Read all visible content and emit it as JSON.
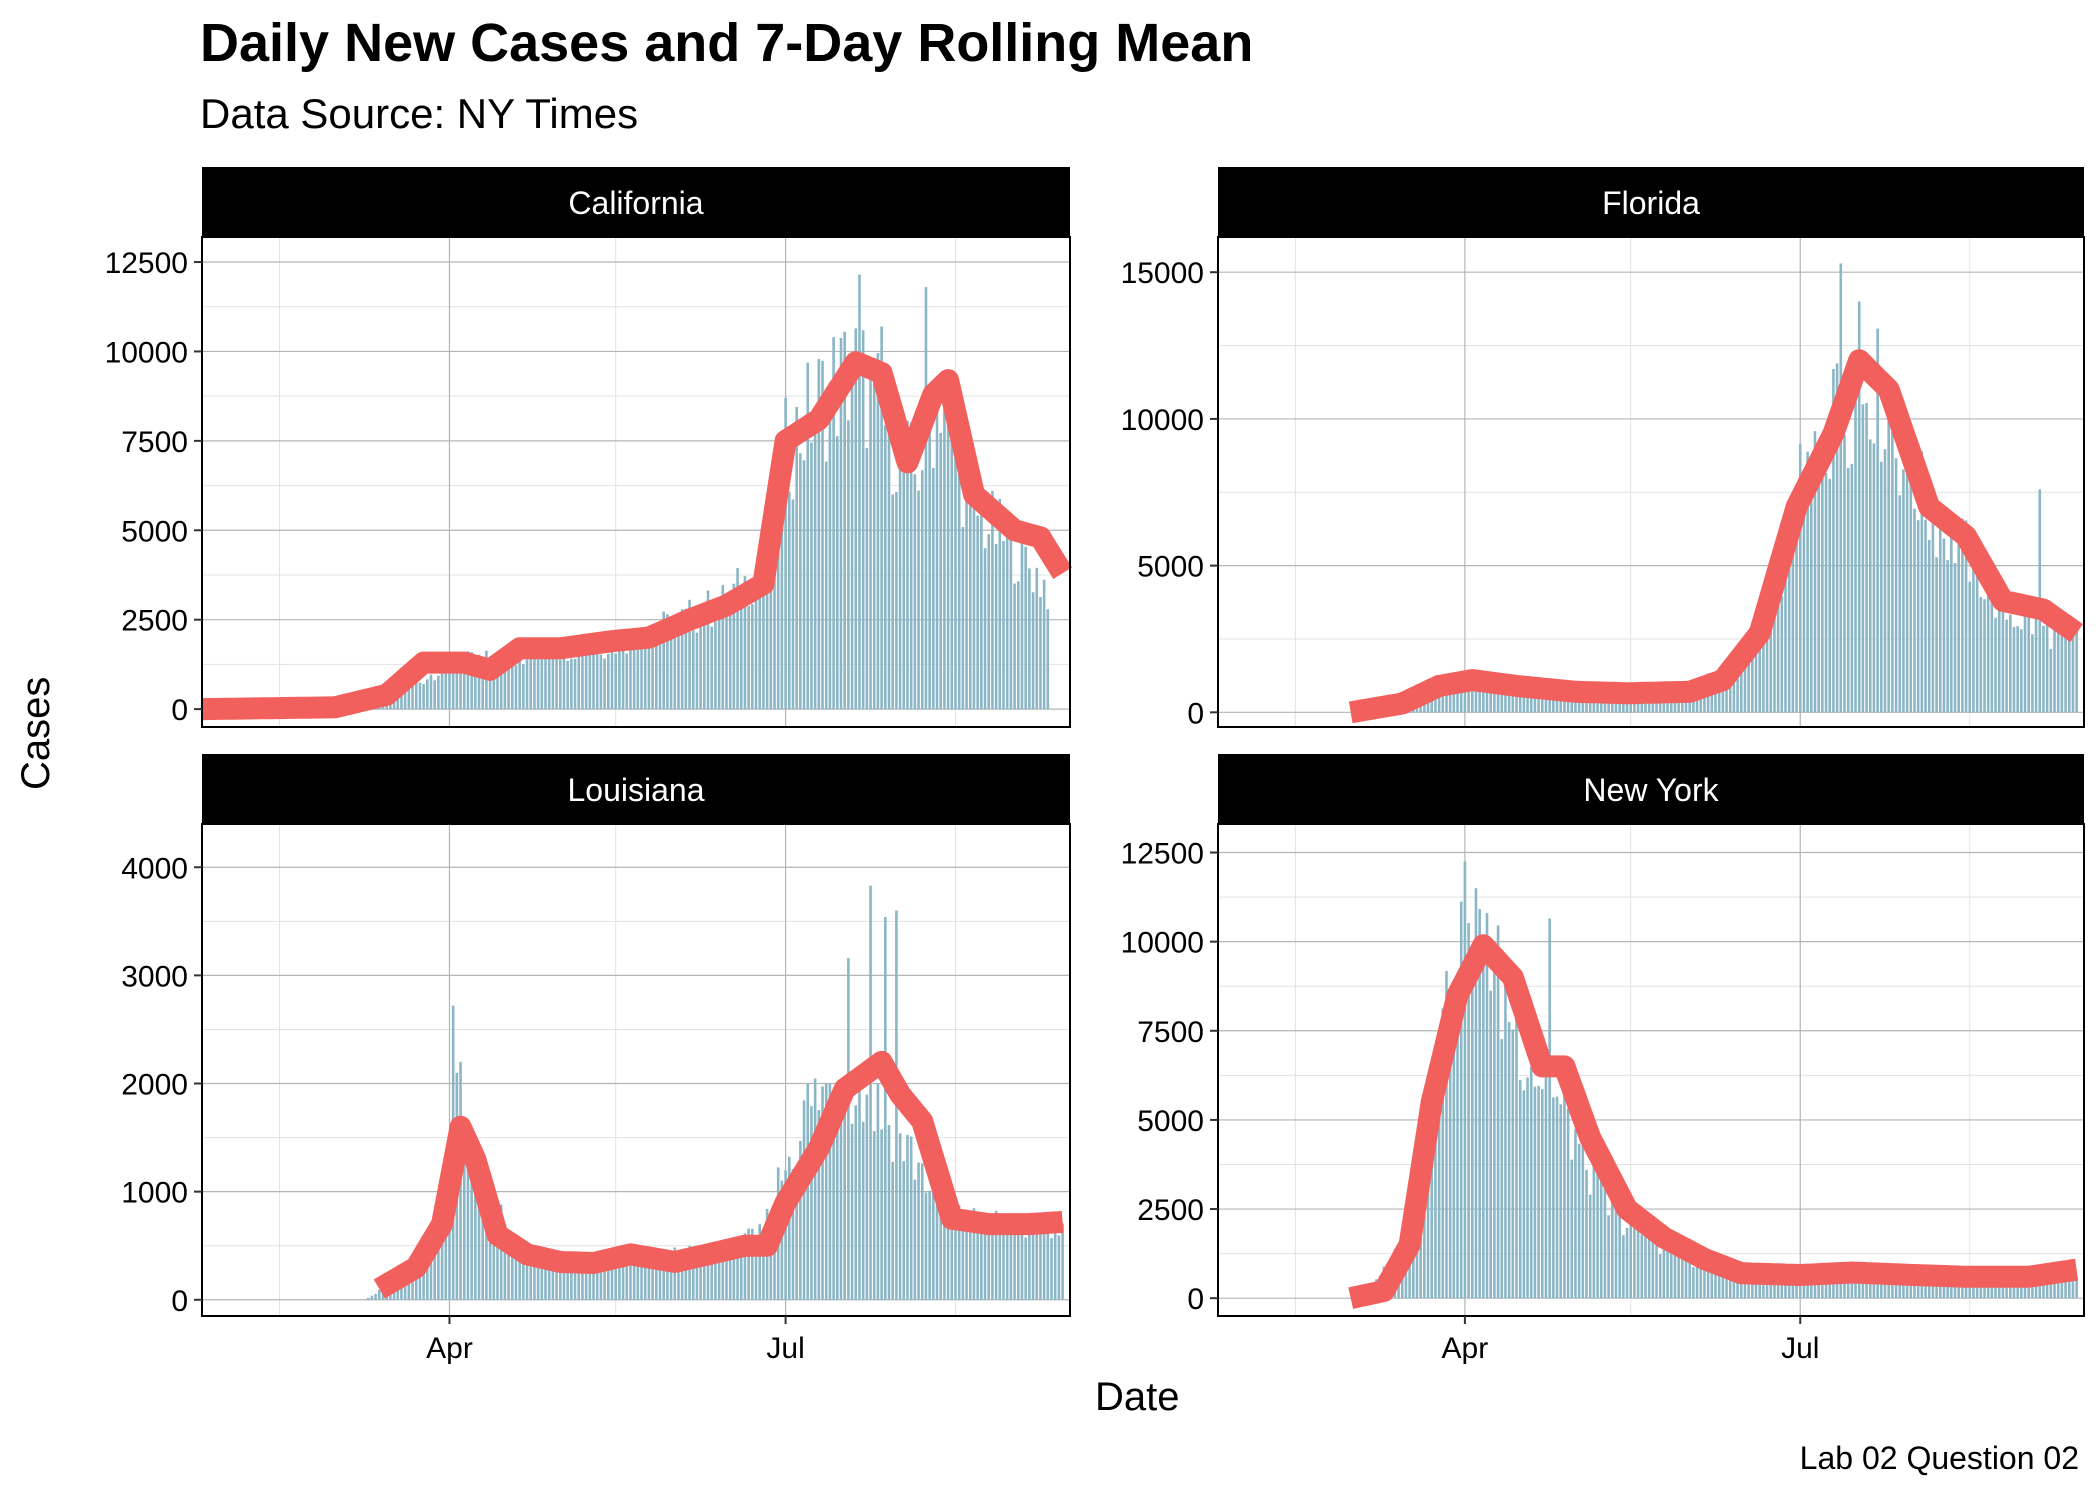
{
  "title": "Daily New Cases and 7-Day Rolling Mean",
  "subtitle": "Data Source: NY Times",
  "caption": "Lab 02 Question 02",
  "xlabel": "Date",
  "ylabel": "Cases",
  "colors": {
    "bars": "#8AB6C6",
    "rolling_mean": "#F2605D",
    "strip": "#000000",
    "strip_text": "#ffffff"
  },
  "chart_data": {
    "type": "bar",
    "facets": [
      "California",
      "Florida",
      "Louisiana",
      "New York"
    ],
    "x_tick_labels": [
      "Apr",
      "Jul"
    ],
    "x_ticks": [
      "2020-04-01",
      "2020-07-01"
    ],
    "x_range": [
      "2020-01-25",
      "2020-09-16"
    ],
    "grid": true,
    "panels": [
      {
        "name": "California",
        "ylim": [
          -500,
          13200
        ],
        "y_ticks": [
          0,
          2500,
          5000,
          7500,
          10000,
          12500
        ],
        "bars_start": "2020-03-01",
        "bars_end": "2020-09-10",
        "bar_anchors": [
          [
            "2020-03-01",
            30
          ],
          [
            "2020-03-20",
            500
          ],
          [
            "2020-04-01",
            1300
          ],
          [
            "2020-04-15",
            1400
          ],
          [
            "2020-05-01",
            1700
          ],
          [
            "2020-05-15",
            1800
          ],
          [
            "2020-06-01",
            2400
          ],
          [
            "2020-06-15",
            3000
          ],
          [
            "2020-06-25",
            4000
          ],
          [
            "2020-07-01",
            7200
          ],
          [
            "2020-07-10",
            8600
          ],
          [
            "2020-07-20",
            9500
          ],
          [
            "2020-07-28",
            8000
          ],
          [
            "2020-08-05",
            6500
          ],
          [
            "2020-08-12",
            9000
          ],
          [
            "2020-08-20",
            5600
          ],
          [
            "2020-09-01",
            4500
          ],
          [
            "2020-09-10",
            3400
          ]
        ],
        "bar_spikes": [
          [
            "2020-07-21",
            12150
          ],
          [
            "2020-08-08",
            11800
          ],
          [
            "2020-07-14",
            10400
          ],
          [
            "2020-07-27",
            10700
          ]
        ],
        "mean_start": "2020-01-25",
        "mean_end": "2020-09-14",
        "mean_anchors": [
          [
            "2020-01-25",
            0
          ],
          [
            "2020-03-01",
            50
          ],
          [
            "2020-03-15",
            400
          ],
          [
            "2020-03-25",
            1300
          ],
          [
            "2020-04-05",
            1300
          ],
          [
            "2020-04-12",
            1100
          ],
          [
            "2020-04-20",
            1700
          ],
          [
            "2020-05-01",
            1700
          ],
          [
            "2020-05-15",
            1900
          ],
          [
            "2020-05-25",
            2000
          ],
          [
            "2020-06-05",
            2500
          ],
          [
            "2020-06-15",
            2900
          ],
          [
            "2020-06-25",
            3500
          ],
          [
            "2020-07-01",
            7500
          ],
          [
            "2020-07-10",
            8100
          ],
          [
            "2020-07-20",
            9700
          ],
          [
            "2020-07-27",
            9400
          ],
          [
            "2020-08-03",
            6900
          ],
          [
            "2020-08-10",
            8800
          ],
          [
            "2020-08-14",
            9200
          ],
          [
            "2020-08-21",
            6000
          ],
          [
            "2020-09-01",
            5000
          ],
          [
            "2020-09-08",
            4800
          ],
          [
            "2020-09-14",
            3800
          ]
        ]
      },
      {
        "name": "Florida",
        "ylim": [
          -500,
          16200
        ],
        "y_ticks": [
          0,
          5000,
          10000,
          15000
        ],
        "bars_start": "2020-03-01",
        "bars_end": "2020-09-14",
        "bar_anchors": [
          [
            "2020-03-01",
            0
          ],
          [
            "2020-03-10",
            100
          ],
          [
            "2020-03-20",
            500
          ],
          [
            "2020-04-01",
            1100
          ],
          [
            "2020-04-15",
            900
          ],
          [
            "2020-05-01",
            700
          ],
          [
            "2020-05-15",
            600
          ],
          [
            "2020-06-01",
            800
          ],
          [
            "2020-06-15",
            1800
          ],
          [
            "2020-06-25",
            4500
          ],
          [
            "2020-07-01",
            7500
          ],
          [
            "2020-07-10",
            10000
          ],
          [
            "2020-07-20",
            11500
          ],
          [
            "2020-07-28",
            9000
          ],
          [
            "2020-08-05",
            6800
          ],
          [
            "2020-08-15",
            5500
          ],
          [
            "2020-08-25",
            3500
          ],
          [
            "2020-09-05",
            2800
          ],
          [
            "2020-09-14",
            2500
          ]
        ],
        "bar_spikes": [
          [
            "2020-07-12",
            15300
          ],
          [
            "2020-07-17",
            14000
          ],
          [
            "2020-07-10",
            11700
          ],
          [
            "2020-09-04",
            7600
          ]
        ],
        "mean_start": "2020-03-01",
        "mean_end": "2020-09-14",
        "mean_anchors": [
          [
            "2020-03-01",
            0
          ],
          [
            "2020-03-15",
            300
          ],
          [
            "2020-03-25",
            900
          ],
          [
            "2020-04-03",
            1100
          ],
          [
            "2020-04-15",
            900
          ],
          [
            "2020-05-01",
            700
          ],
          [
            "2020-05-15",
            650
          ],
          [
            "2020-06-01",
            700
          ],
          [
            "2020-06-10",
            1100
          ],
          [
            "2020-06-20",
            2700
          ],
          [
            "2020-06-30",
            7000
          ],
          [
            "2020-07-10",
            9500
          ],
          [
            "2020-07-17",
            12000
          ],
          [
            "2020-07-25",
            11000
          ],
          [
            "2020-08-05",
            7000
          ],
          [
            "2020-08-15",
            6000
          ],
          [
            "2020-08-25",
            3800
          ],
          [
            "2020-09-05",
            3500
          ],
          [
            "2020-09-14",
            2700
          ]
        ]
      },
      {
        "name": "Louisiana",
        "ylim": [
          -150,
          4400
        ],
        "y_ticks": [
          0,
          1000,
          2000,
          3000,
          4000
        ],
        "bars_start": "2020-03-09",
        "bars_end": "2020-09-14",
        "bar_anchors": [
          [
            "2020-03-09",
            5
          ],
          [
            "2020-03-20",
            200
          ],
          [
            "2020-03-28",
            400
          ],
          [
            "2020-04-03",
            1800
          ],
          [
            "2020-04-10",
            1100
          ],
          [
            "2020-04-20",
            450
          ],
          [
            "2020-05-01",
            350
          ],
          [
            "2020-05-15",
            380
          ],
          [
            "2020-06-01",
            400
          ],
          [
            "2020-06-15",
            450
          ],
          [
            "2020-06-25",
            600
          ],
          [
            "2020-07-01",
            1300
          ],
          [
            "2020-07-10",
            1900
          ],
          [
            "2020-07-20",
            2000
          ],
          [
            "2020-07-28",
            1700
          ],
          [
            "2020-08-05",
            1300
          ],
          [
            "2020-08-15",
            750
          ],
          [
            "2020-09-01",
            680
          ],
          [
            "2020-09-14",
            650
          ]
        ],
        "bar_spikes": [
          [
            "2020-04-02",
            2720
          ],
          [
            "2020-04-04",
            2200
          ],
          [
            "2020-07-24",
            3830
          ],
          [
            "2020-07-31",
            3600
          ],
          [
            "2020-07-28",
            3540
          ],
          [
            "2020-07-18",
            3160
          ],
          [
            "2020-07-07",
            2000
          ]
        ],
        "mean_start": "2020-03-13",
        "mean_end": "2020-09-14",
        "mean_anchors": [
          [
            "2020-03-13",
            100
          ],
          [
            "2020-03-23",
            300
          ],
          [
            "2020-03-30",
            700
          ],
          [
            "2020-04-04",
            1600
          ],
          [
            "2020-04-08",
            1300
          ],
          [
            "2020-04-14",
            600
          ],
          [
            "2020-04-22",
            420
          ],
          [
            "2020-05-01",
            350
          ],
          [
            "2020-05-10",
            340
          ],
          [
            "2020-05-20",
            420
          ],
          [
            "2020-06-01",
            350
          ],
          [
            "2020-06-10",
            420
          ],
          [
            "2020-06-20",
            500
          ],
          [
            "2020-06-26",
            500
          ],
          [
            "2020-07-01",
            900
          ],
          [
            "2020-07-10",
            1400
          ],
          [
            "2020-07-17",
            1950
          ],
          [
            "2020-07-27",
            2200
          ],
          [
            "2020-08-01",
            1900
          ],
          [
            "2020-08-07",
            1650
          ],
          [
            "2020-08-15",
            750
          ],
          [
            "2020-08-25",
            700
          ],
          [
            "2020-09-05",
            700
          ],
          [
            "2020-09-14",
            720
          ]
        ]
      },
      {
        "name": "New York",
        "ylim": [
          -500,
          13300
        ],
        "y_ticks": [
          0,
          2500,
          5000,
          7500,
          10000,
          12500
        ],
        "bars_start": "2020-03-05",
        "bars_end": "2020-09-14",
        "bar_anchors": [
          [
            "2020-03-05",
            0
          ],
          [
            "2020-03-15",
            1500
          ],
          [
            "2020-03-22",
            6000
          ],
          [
            "2020-03-29",
            9000
          ],
          [
            "2020-04-05",
            9500
          ],
          [
            "2020-04-12",
            8500
          ],
          [
            "2020-04-20",
            6500
          ],
          [
            "2020-05-01",
            4500
          ],
          [
            "2020-05-10",
            2500
          ],
          [
            "2020-05-20",
            1800
          ],
          [
            "2020-06-01",
            1100
          ],
          [
            "2020-06-15",
            700
          ],
          [
            "2020-07-01",
            650
          ],
          [
            "2020-08-01",
            650
          ],
          [
            "2020-09-01",
            650
          ],
          [
            "2020-09-14",
            700
          ]
        ],
        "bar_spikes": [
          [
            "2020-04-01",
            12250
          ],
          [
            "2020-04-04",
            11500
          ],
          [
            "2020-04-24",
            10650
          ],
          [
            "2020-04-07",
            10800
          ]
        ],
        "mean_start": "2020-03-01",
        "mean_end": "2020-09-14",
        "mean_anchors": [
          [
            "2020-03-01",
            0
          ],
          [
            "2020-03-10",
            200
          ],
          [
            "2020-03-17",
            1500
          ],
          [
            "2020-03-23",
            5500
          ],
          [
            "2020-03-30",
            8500
          ],
          [
            "2020-04-06",
            9900
          ],
          [
            "2020-04-14",
            9000
          ],
          [
            "2020-04-22",
            6500
          ],
          [
            "2020-04-28",
            6500
          ],
          [
            "2020-05-05",
            4500
          ],
          [
            "2020-05-15",
            2500
          ],
          [
            "2020-05-25",
            1700
          ],
          [
            "2020-06-05",
            1100
          ],
          [
            "2020-06-15",
            700
          ],
          [
            "2020-07-01",
            650
          ],
          [
            "2020-07-15",
            720
          ],
          [
            "2020-08-01",
            650
          ],
          [
            "2020-08-15",
            600
          ],
          [
            "2020-09-01",
            600
          ],
          [
            "2020-09-14",
            800
          ]
        ]
      }
    ]
  }
}
